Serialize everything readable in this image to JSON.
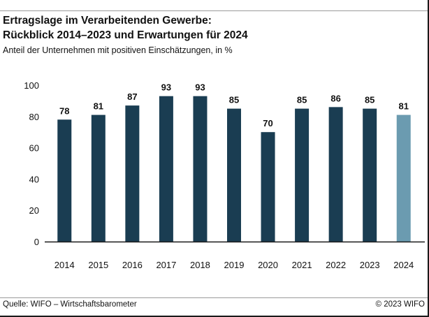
{
  "header": {
    "title_line1": "Ertragslage im Verarbeitenden Gewerbe:",
    "title_line2": "Rückblick 2014–2023 und Erwartungen für 2024",
    "subtitle": "Anteil der Unternehmen mit positiven Einschätzungen, in %"
  },
  "footer": {
    "source": "Quelle: WIFO – Wirtschaftsbarometer",
    "copyright": "© 2023 WIFO"
  },
  "colors": {
    "actual": "#1a3d52",
    "forecast": "#6b9bb0",
    "axis": "#1a1a1a"
  },
  "chart_data": {
    "type": "bar",
    "title": "Ertragslage im Verarbeitenden Gewerbe: Rückblick 2014–2023 und Erwartungen für 2024",
    "subtitle": "Anteil der Unternehmen mit positiven Einschätzungen, in %",
    "xlabel": "",
    "ylabel": "",
    "ylim": [
      0,
      100
    ],
    "yticks": [
      0,
      20,
      40,
      60,
      80,
      100
    ],
    "grid": false,
    "categories": [
      "2014",
      "2015",
      "2016",
      "2017",
      "2018",
      "2019",
      "2020",
      "2021",
      "2022",
      "2023",
      "2024"
    ],
    "values": [
      78,
      81,
      87,
      93,
      93,
      85,
      70,
      85,
      86,
      85,
      81
    ],
    "data_labels": [
      "78",
      "81",
      "87",
      "93",
      "93",
      "85",
      "70",
      "85",
      "86",
      "85",
      "81"
    ],
    "forecast_categories": [
      "2024"
    ]
  }
}
